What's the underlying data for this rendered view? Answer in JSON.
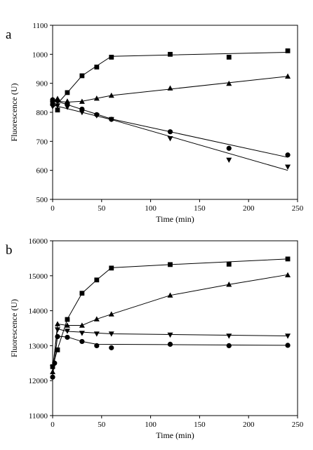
{
  "chart_data": [
    {
      "type": "scatter",
      "panel_label": "a",
      "xlabel": "Time (min)",
      "ylabel": "Fluorescence (U)",
      "xlim": [
        0,
        250
      ],
      "ylim": [
        500,
        1100
      ],
      "xticks": [
        0,
        50,
        100,
        150,
        200,
        250
      ],
      "yticks": [
        500,
        600,
        700,
        800,
        900,
        1000,
        1100
      ],
      "x": [
        0,
        5,
        15,
        30,
        45,
        60,
        120,
        180,
        240
      ],
      "series": [
        {
          "marker": "square",
          "points": [
            [
              0,
              830
            ],
            [
              5,
              808
            ],
            [
              15,
              868
            ],
            [
              30,
              926
            ],
            [
              45,
              956
            ],
            [
              60,
              990
            ],
            [
              120,
              1000
            ],
            [
              180,
              990
            ],
            [
              240,
              1012
            ]
          ],
          "fit": [
            [
              0,
              815
            ],
            [
              5,
              830
            ],
            [
              15,
              868
            ],
            [
              30,
              926
            ],
            [
              45,
              960
            ],
            [
              60,
              993
            ],
            [
              240,
              1007
            ]
          ]
        },
        {
          "marker": "triangle-up",
          "points": [
            [
              0,
              845
            ],
            [
              5,
              847
            ],
            [
              15,
              838
            ],
            [
              30,
              837
            ],
            [
              45,
              848
            ],
            [
              60,
              858
            ],
            [
              120,
              883
            ],
            [
              180,
              899
            ],
            [
              240,
              924
            ]
          ],
          "fit": [
            [
              0,
              845
            ],
            [
              5,
              838
            ],
            [
              15,
              835
            ],
            [
              30,
              838
            ],
            [
              45,
              848
            ],
            [
              60,
              858
            ],
            [
              240,
              924
            ]
          ]
        },
        {
          "marker": "circle",
          "points": [
            [
              0,
              843
            ],
            [
              5,
              840
            ],
            [
              15,
              828
            ],
            [
              30,
              811
            ],
            [
              45,
              792
            ],
            [
              60,
              776
            ],
            [
              120,
              733
            ],
            [
              180,
              676
            ],
            [
              240,
              653
            ]
          ],
          "fit": [
            [
              0,
              843
            ],
            [
              60,
              777
            ],
            [
              240,
              645
            ]
          ]
        },
        {
          "marker": "triangle-down",
          "points": [
            [
              0,
              820
            ],
            [
              5,
              823
            ],
            [
              15,
              818
            ],
            [
              30,
              800
            ],
            [
              45,
              789
            ],
            [
              60,
              776
            ],
            [
              120,
              710
            ],
            [
              180,
              636
            ],
            [
              240,
              612
            ]
          ],
          "fit": [
            [
              0,
              825
            ],
            [
              60,
              775
            ],
            [
              240,
              600
            ]
          ]
        }
      ]
    },
    {
      "type": "scatter",
      "panel_label": "b",
      "xlabel": "Time (min)",
      "ylabel": "Fluorescence (U)",
      "xlim": [
        0,
        250
      ],
      "ylim": [
        11000,
        16000
      ],
      "xticks": [
        0,
        50,
        100,
        150,
        200,
        250
      ],
      "yticks": [
        11000,
        12000,
        13000,
        14000,
        15000,
        16000
      ],
      "x": [
        0,
        2,
        5,
        8,
        15,
        30,
        45,
        60,
        120,
        180,
        240
      ],
      "series": [
        {
          "marker": "square",
          "points": [
            [
              0,
              12400
            ],
            [
              5,
              12880
            ],
            [
              15,
              13750
            ],
            [
              30,
              14500
            ],
            [
              45,
              14880
            ],
            [
              60,
              15220
            ],
            [
              120,
              15320
            ],
            [
              180,
              15330
            ],
            [
              240,
              15480
            ]
          ],
          "fit": [
            [
              0,
              12400
            ],
            [
              5,
              12900
            ],
            [
              15,
              13760
            ],
            [
              30,
              14500
            ],
            [
              45,
              14880
            ],
            [
              60,
              15230
            ],
            [
              120,
              15320
            ],
            [
              240,
              15480
            ]
          ]
        },
        {
          "marker": "triangle-up",
          "points": [
            [
              0,
              12250
            ],
            [
              5,
              13620
            ],
            [
              15,
              13580
            ],
            [
              30,
              13580
            ],
            [
              45,
              13760
            ],
            [
              60,
              13900
            ],
            [
              120,
              14440
            ],
            [
              180,
              14750
            ],
            [
              240,
              15020
            ]
          ],
          "fit": [
            [
              0,
              12250
            ],
            [
              5,
              13620
            ],
            [
              15,
              13580
            ],
            [
              30,
              13580
            ],
            [
              45,
              13760
            ],
            [
              60,
              13900
            ],
            [
              120,
              14440
            ],
            [
              180,
              14750
            ],
            [
              240,
              15030
            ]
          ]
        },
        {
          "marker": "triangle-down",
          "points": [
            [
              0,
              12380
            ],
            [
              5,
              13460
            ],
            [
              15,
              13420
            ],
            [
              30,
              13360
            ],
            [
              45,
              13340
            ],
            [
              60,
              13340
            ],
            [
              120,
              13310
            ],
            [
              180,
              13280
            ],
            [
              240,
              13280
            ]
          ],
          "fit": [
            [
              0,
              12380
            ],
            [
              5,
              13480
            ],
            [
              15,
              13410
            ],
            [
              60,
              13340
            ],
            [
              240,
              13280
            ]
          ]
        },
        {
          "marker": "circle",
          "points": [
            [
              0,
              12100
            ],
            [
              2,
              12500
            ],
            [
              5,
              13260
            ],
            [
              15,
              13240
            ],
            [
              30,
              13120
            ],
            [
              45,
              13000
            ],
            [
              60,
              12940
            ],
            [
              120,
              13040
            ],
            [
              180,
              13000
            ],
            [
              240,
              13010
            ]
          ],
          "fit": [
            [
              0,
              12100
            ],
            [
              5,
              13270
            ],
            [
              15,
              13250
            ],
            [
              30,
              13120
            ],
            [
              45,
              13040
            ],
            [
              120,
              13030
            ],
            [
              240,
              13010
            ]
          ]
        }
      ]
    }
  ]
}
